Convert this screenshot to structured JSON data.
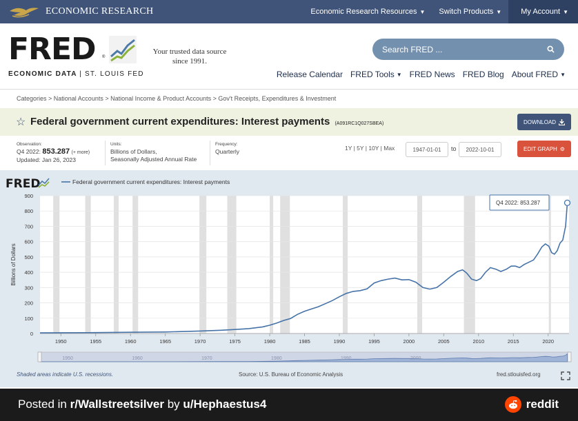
{
  "topbar": {
    "brand": "ECONOMIC RESEARCH",
    "nav": [
      {
        "label": "Economic Research Resources"
      },
      {
        "label": "Switch Products"
      },
      {
        "label": "My Account"
      }
    ]
  },
  "header": {
    "logo_word": "FRED",
    "logo_sub_bold": "ECONOMIC DATA",
    "logo_sub_light": "| ST. LOUIS FED",
    "tagline": "Your trusted data source since 1991.",
    "search_placeholder": "Search FRED ...",
    "subnav": [
      {
        "label": "Release Calendar",
        "dropdown": false
      },
      {
        "label": "FRED Tools",
        "dropdown": true
      },
      {
        "label": "FRED News",
        "dropdown": false
      },
      {
        "label": "FRED Blog",
        "dropdown": false
      },
      {
        "label": "About FRED",
        "dropdown": true
      }
    ]
  },
  "breadcrumb": "Categories > National Accounts > National Income & Product Accounts > Gov't Receipts, Expenditures & Investment",
  "series": {
    "title": "Federal government current expenditures: Interest payments",
    "id": "(A091RC1Q027SBEA)",
    "download_label": "DOWNLOAD",
    "observation_label": "Observation:",
    "observation_period": "Q4 2022:",
    "observation_value": "853.287",
    "observation_more": "(+ more)",
    "updated": "Updated: Jan 26, 2023",
    "units_label": "Units:",
    "units_line1": "Billions of Dollars,",
    "units_line2": "Seasonally Adjusted Annual Rate",
    "frequency_label": "Frequency:",
    "frequency": "Quarterly",
    "ranges": "1Y | 5Y | 10Y | Max",
    "date_from": "1947-01-01",
    "to_label": "to",
    "date_to": "2022-10-01",
    "edit_label": "EDIT GRAPH"
  },
  "graph": {
    "fred_logo": "FRED",
    "legend_label": "Federal government current expenditures: Interest payments",
    "tooltip": "Q4 2022: 853.287",
    "footer_left": "Shaded areas indicate U.S. recessions.",
    "footer_mid": "Source: U.S. Bureau of Economic Analysis",
    "footer_right": "fred.stlouisfed.org",
    "navigator_labels": [
      "1950",
      "1960",
      "1970",
      "1980",
      "1990",
      "2000"
    ]
  },
  "chart_data": {
    "type": "line",
    "ylabel": "Billions of Dollars",
    "ylim": [
      0,
      900
    ],
    "xlim": [
      1947,
      2023
    ],
    "yticks": [
      0,
      100,
      200,
      300,
      400,
      500,
      600,
      700,
      800,
      900
    ],
    "xticks": [
      1950,
      1955,
      1960,
      1965,
      1970,
      1975,
      1980,
      1985,
      1990,
      1995,
      2000,
      2005,
      2010,
      2015,
      2020
    ],
    "grid": true,
    "legend": "top-left",
    "line_color": "#4572a7",
    "recession_color": "#e0e0e0",
    "recessions": [
      [
        1948.9,
        1949.8
      ],
      [
        1953.5,
        1954.3
      ],
      [
        1957.6,
        1958.3
      ],
      [
        1960.3,
        1961.1
      ],
      [
        1969.9,
        1970.9
      ],
      [
        1973.9,
        1975.2
      ],
      [
        1980.0,
        1980.5
      ],
      [
        1981.5,
        1982.9
      ],
      [
        1990.5,
        1991.2
      ],
      [
        2001.2,
        2001.9
      ],
      [
        2007.9,
        2009.5
      ],
      [
        2020.1,
        2020.4
      ]
    ],
    "series": [
      {
        "points": [
          [
            1947.0,
            4
          ],
          [
            1950,
            5
          ],
          [
            1955,
            6
          ],
          [
            1960,
            8
          ],
          [
            1965,
            10
          ],
          [
            1970,
            16
          ],
          [
            1973,
            21
          ],
          [
            1975,
            26
          ],
          [
            1977,
            32
          ],
          [
            1979,
            43
          ],
          [
            1980,
            54
          ],
          [
            1981,
            68
          ],
          [
            1982,
            85
          ],
          [
            1983,
            98
          ],
          [
            1984,
            125
          ],
          [
            1985,
            145
          ],
          [
            1986,
            160
          ],
          [
            1987,
            175
          ],
          [
            1988,
            195
          ],
          [
            1989,
            215
          ],
          [
            1990,
            240
          ],
          [
            1991,
            262
          ],
          [
            1992,
            275
          ],
          [
            1993,
            280
          ],
          [
            1994,
            292
          ],
          [
            1995,
            330
          ],
          [
            1996,
            345
          ],
          [
            1997,
            355
          ],
          [
            1998,
            362
          ],
          [
            1999,
            350
          ],
          [
            2000,
            352
          ],
          [
            2001,
            335
          ],
          [
            2002,
            300
          ],
          [
            2003,
            290
          ],
          [
            2004,
            300
          ],
          [
            2005,
            335
          ],
          [
            2006,
            372
          ],
          [
            2007,
            405
          ],
          [
            2007.7,
            416
          ],
          [
            2008.3,
            395
          ],
          [
            2009,
            355
          ],
          [
            2009.7,
            345
          ],
          [
            2010.3,
            358
          ],
          [
            2011,
            400
          ],
          [
            2011.7,
            430
          ],
          [
            2012.5,
            420
          ],
          [
            2013.2,
            405
          ],
          [
            2014,
            420
          ],
          [
            2014.7,
            440
          ],
          [
            2015.3,
            440
          ],
          [
            2015.9,
            430
          ],
          [
            2016.6,
            452
          ],
          [
            2017.2,
            465
          ],
          [
            2017.9,
            480
          ],
          [
            2018.5,
            520
          ],
          [
            2019.1,
            565
          ],
          [
            2019.6,
            585
          ],
          [
            2020.1,
            570
          ],
          [
            2020.5,
            528
          ],
          [
            2020.9,
            518
          ],
          [
            2021.3,
            540
          ],
          [
            2021.7,
            590
          ],
          [
            2022.1,
            610
          ],
          [
            2022.5,
            700
          ],
          [
            2022.75,
            853.287
          ]
        ]
      }
    ]
  }
}
